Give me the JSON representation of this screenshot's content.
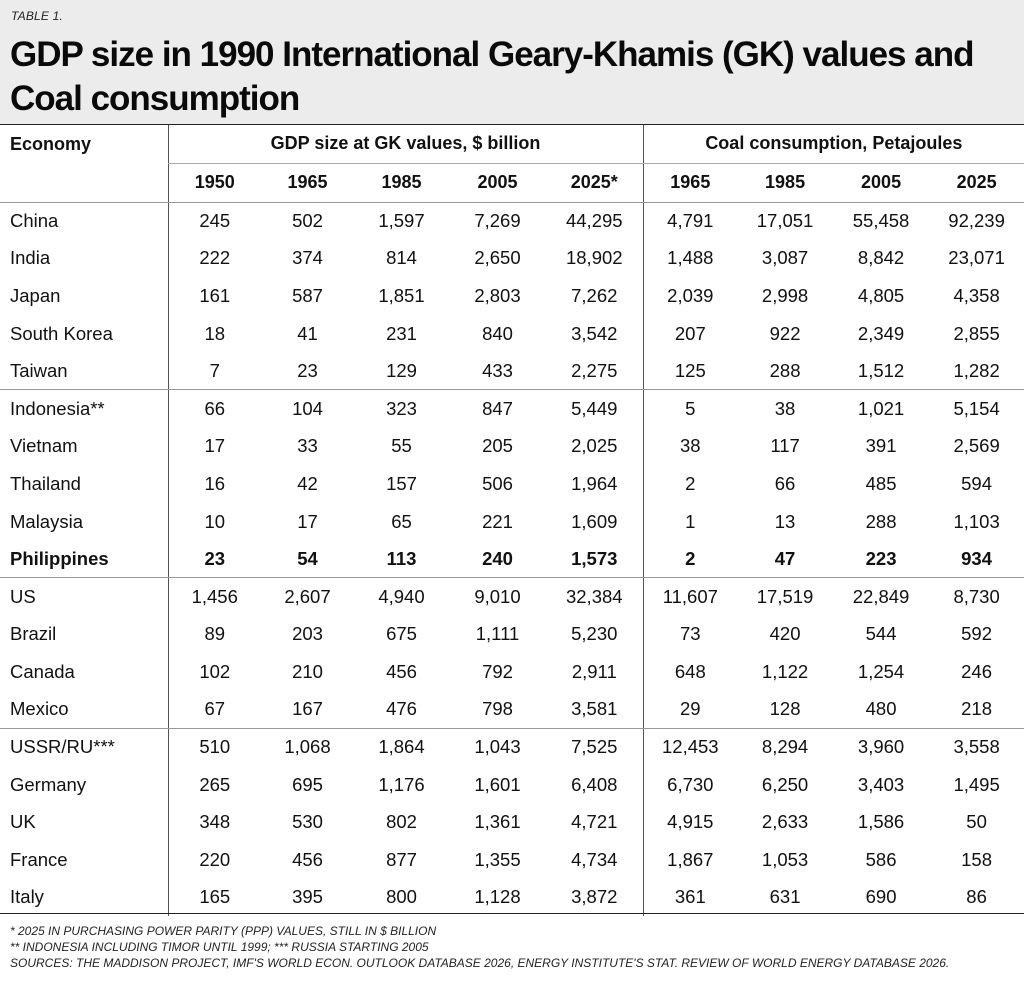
{
  "table_label": "TABLE 1.",
  "title": "GDP size in 1990 International Geary-Khamis (GK) values and Coal consumption",
  "headers": {
    "economy": "Economy",
    "gdp_group": "GDP size at GK values, $ billion",
    "coal_group": "Coal consumption, Petajoules",
    "gdp_years": [
      "1950",
      "1965",
      "1985",
      "2005",
      "2025*"
    ],
    "coal_years": [
      "1965",
      "1985",
      "2005",
      "2025"
    ]
  },
  "groups": [
    {
      "rows": [
        {
          "name": "China",
          "gdp": [
            "245",
            "502",
            "1,597",
            "7,269",
            "44,295"
          ],
          "coal": [
            "4,791",
            "17,051",
            "55,458",
            "92,239"
          ]
        },
        {
          "name": "India",
          "gdp": [
            "222",
            "374",
            "814",
            "2,650",
            "18,902"
          ],
          "coal": [
            "1,488",
            "3,087",
            "8,842",
            "23,071"
          ]
        },
        {
          "name": "Japan",
          "gdp": [
            "161",
            "587",
            "1,851",
            "2,803",
            "7,262"
          ],
          "coal": [
            "2,039",
            "2,998",
            "4,805",
            "4,358"
          ]
        },
        {
          "name": "South Korea",
          "gdp": [
            "18",
            "41",
            "231",
            "840",
            "3,542"
          ],
          "coal": [
            "207",
            "922",
            "2,349",
            "2,855"
          ]
        },
        {
          "name": "Taiwan",
          "gdp": [
            "7",
            "23",
            "129",
            "433",
            "2,275"
          ],
          "coal": [
            "125",
            "288",
            "1,512",
            "1,282"
          ]
        }
      ]
    },
    {
      "rows": [
        {
          "name": "Indonesia**",
          "gdp": [
            "66",
            "104",
            "323",
            "847",
            "5,449"
          ],
          "coal": [
            "5",
            "38",
            "1,021",
            "5,154"
          ]
        },
        {
          "name": "Vietnam",
          "gdp": [
            "17",
            "33",
            "55",
            "205",
            "2,025"
          ],
          "coal": [
            "38",
            "117",
            "391",
            "2,569"
          ]
        },
        {
          "name": "Thailand",
          "gdp": [
            "16",
            "42",
            "157",
            "506",
            "1,964"
          ],
          "coal": [
            "2",
            "66",
            "485",
            "594"
          ]
        },
        {
          "name": "Malaysia",
          "gdp": [
            "10",
            "17",
            "65",
            "221",
            "1,609"
          ],
          "coal": [
            "1",
            "13",
            "288",
            "1,103"
          ]
        },
        {
          "name": "Philippines",
          "bold": true,
          "gdp": [
            "23",
            "54",
            "113",
            "240",
            "1,573"
          ],
          "coal": [
            "2",
            "47",
            "223",
            "934"
          ]
        }
      ]
    },
    {
      "rows": [
        {
          "name": "US",
          "gdp": [
            "1,456",
            "2,607",
            "4,940",
            "9,010",
            "32,384"
          ],
          "coal": [
            "11,607",
            "17,519",
            "22,849",
            "8,730"
          ]
        },
        {
          "name": "Brazil",
          "gdp": [
            "89",
            "203",
            "675",
            "1,111",
            "5,230"
          ],
          "coal": [
            "73",
            "420",
            "544",
            "592"
          ]
        },
        {
          "name": "Canada",
          "gdp": [
            "102",
            "210",
            "456",
            "792",
            "2,911"
          ],
          "coal": [
            "648",
            "1,122",
            "1,254",
            "246"
          ]
        },
        {
          "name": "Mexico",
          "gdp": [
            "67",
            "167",
            "476",
            "798",
            "3,581"
          ],
          "coal": [
            "29",
            "128",
            "480",
            "218"
          ]
        }
      ]
    },
    {
      "rows": [
        {
          "name": "USSR/RU***",
          "gdp": [
            "510",
            "1,068",
            "1,864",
            "1,043",
            "7,525"
          ],
          "coal": [
            "12,453",
            "8,294",
            "3,960",
            "3,558"
          ]
        },
        {
          "name": "Germany",
          "gdp": [
            "265",
            "695",
            "1,176",
            "1,601",
            "6,408"
          ],
          "coal": [
            "6,730",
            "6,250",
            "3,403",
            "1,495"
          ]
        },
        {
          "name": "UK",
          "gdp": [
            "348",
            "530",
            "802",
            "1,361",
            "4,721"
          ],
          "coal": [
            "4,915",
            "2,633",
            "1,586",
            "50"
          ]
        },
        {
          "name": "France",
          "gdp": [
            "220",
            "456",
            "877",
            "1,355",
            "4,734"
          ],
          "coal": [
            "1,867",
            "1,053",
            "586",
            "158"
          ]
        },
        {
          "name": "Italy",
          "gdp": [
            "165",
            "395",
            "800",
            "1,128",
            "3,872"
          ],
          "coal": [
            "361",
            "631",
            "690",
            "86"
          ]
        }
      ]
    }
  ],
  "footnotes": [
    "* 2025 IN PURCHASING POWER PARITY (PPP) VALUES, STILL IN $ BILLION",
    "** INDONESIA INCLUDING TIMOR UNTIL 1999; *** RUSSIA STARTING 2005",
    "SOURCES: THE MADDISON PROJECT, IMF'S WORLD ECON. OUTLOOK DATABASE 2026, ENERGY INSTITUTE'S STAT. REVIEW OF WORLD ENERGY DATABASE 2026."
  ]
}
